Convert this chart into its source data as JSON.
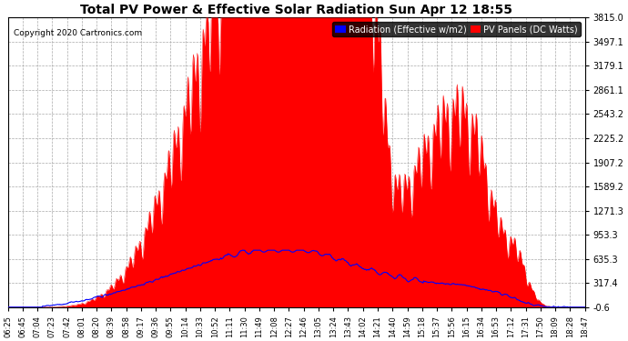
{
  "title": "Total PV Power & Effective Solar Radiation Sun Apr 12 18:55",
  "copyright": "Copyright 2020 Cartronics.com",
  "legend_radiation": "Radiation (Effective w/m2)",
  "legend_pv": "PV Panels (DC Watts)",
  "yticks": [
    3815.0,
    3497.1,
    3179.1,
    2861.1,
    2543.2,
    2225.2,
    1907.2,
    1589.2,
    1271.3,
    953.3,
    635.3,
    317.4,
    -0.6
  ],
  "ymin": -0.6,
  "ymax": 3815.0,
  "background_color": "#ffffff",
  "grid_color": "#aaaaaa",
  "pv_color": "#ff0000",
  "radiation_color": "#0000ff",
  "title_color": "#000000",
  "xtick_labels": [
    "06:25",
    "06:45",
    "07:04",
    "07:23",
    "07:42",
    "08:01",
    "08:20",
    "08:39",
    "08:58",
    "09:17",
    "09:36",
    "09:55",
    "10:14",
    "10:33",
    "10:52",
    "11:11",
    "11:30",
    "11:49",
    "12:08",
    "12:27",
    "12:46",
    "13:05",
    "13:24",
    "13:43",
    "14:02",
    "14:21",
    "14:40",
    "14:59",
    "15:18",
    "15:37",
    "15:56",
    "16:15",
    "16:34",
    "16:53",
    "17:12",
    "17:31",
    "17:50",
    "18:09",
    "18:28",
    "18:47"
  ]
}
